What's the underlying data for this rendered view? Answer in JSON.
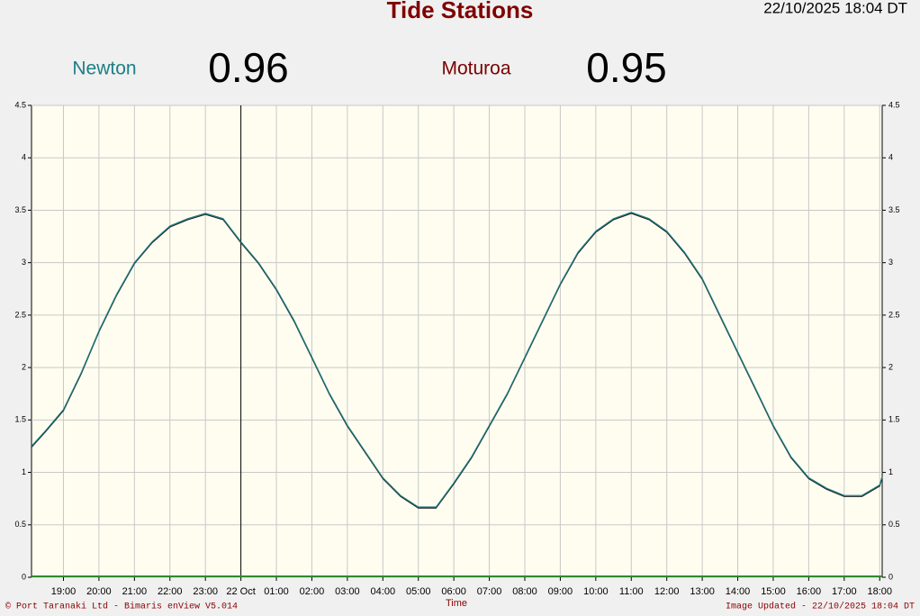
{
  "chart_data": {
    "type": "line",
    "title": "Tide Stations",
    "timestamp": "22/10/2025 18:04 DT",
    "x_label": "Time",
    "footer_left": "© Port Taranaki Ltd - Bimaris enView V5.014",
    "footer_right": "Image Updated - 22/10/2025 18:04 DT",
    "x": [
      18.1,
      18.5,
      19,
      19.5,
      20,
      20.5,
      21,
      21.5,
      22,
      22.5,
      23,
      23.5,
      24,
      24.5,
      25,
      25.5,
      26,
      26.5,
      27,
      27.5,
      28,
      28.5,
      29,
      29.5,
      30,
      30.5,
      31,
      31.5,
      32,
      32.5,
      33,
      33.5,
      34,
      34.5,
      35,
      35.5,
      36,
      36.5,
      37,
      37.5,
      38,
      38.5,
      39,
      39.5,
      40,
      40.5,
      41,
      41.5,
      42,
      42.07
    ],
    "series": [
      {
        "name": "Newton",
        "color": "#1b7f86",
        "latest": 0.96,
        "values": [
          1.25,
          1.4,
          1.6,
          1.95,
          2.35,
          2.7,
          3.0,
          3.2,
          3.35,
          3.42,
          3.47,
          3.42,
          3.2,
          3.0,
          2.75,
          2.45,
          2.1,
          1.75,
          1.45,
          1.2,
          0.95,
          0.78,
          0.67,
          0.67,
          0.9,
          1.15,
          1.45,
          1.75,
          2.1,
          2.45,
          2.8,
          3.1,
          3.3,
          3.42,
          3.48,
          3.42,
          3.3,
          3.1,
          2.85,
          2.5,
          2.15,
          1.8,
          1.45,
          1.15,
          0.95,
          0.85,
          0.78,
          0.78,
          0.88,
          0.96
        ]
      },
      {
        "name": "Moturoa",
        "color": "#7a0000",
        "line_color": "#222222",
        "latest": 0.95,
        "values": [
          1.24,
          1.39,
          1.59,
          1.94,
          2.34,
          2.69,
          2.99,
          3.19,
          3.34,
          3.41,
          3.46,
          3.41,
          3.19,
          2.99,
          2.74,
          2.44,
          2.09,
          1.74,
          1.44,
          1.19,
          0.94,
          0.77,
          0.66,
          0.66,
          0.89,
          1.14,
          1.44,
          1.74,
          2.09,
          2.44,
          2.79,
          3.09,
          3.29,
          3.41,
          3.47,
          3.41,
          3.29,
          3.09,
          2.84,
          2.49,
          2.14,
          1.79,
          1.44,
          1.14,
          0.94,
          0.84,
          0.77,
          0.77,
          0.87,
          0.95
        ]
      }
    ],
    "xlim": [
      18.1,
      42.07
    ],
    "xticks": [
      {
        "value": 19,
        "label": "19:00"
      },
      {
        "value": 20,
        "label": "20:00"
      },
      {
        "value": 21,
        "label": "21:00"
      },
      {
        "value": 22,
        "label": "22:00"
      },
      {
        "value": 23,
        "label": "23:00"
      },
      {
        "value": 24,
        "label": "22 Oct"
      },
      {
        "value": 25,
        "label": "01:00"
      },
      {
        "value": 26,
        "label": "02:00"
      },
      {
        "value": 27,
        "label": "03:00"
      },
      {
        "value": 28,
        "label": "04:00"
      },
      {
        "value": 29,
        "label": "05:00"
      },
      {
        "value": 30,
        "label": "06:00"
      },
      {
        "value": 31,
        "label": "07:00"
      },
      {
        "value": 32,
        "label": "08:00"
      },
      {
        "value": 33,
        "label": "09:00"
      },
      {
        "value": 34,
        "label": "10:00"
      },
      {
        "value": 35,
        "label": "11:00"
      },
      {
        "value": 36,
        "label": "12:00"
      },
      {
        "value": 37,
        "label": "13:00"
      },
      {
        "value": 38,
        "label": "14:00"
      },
      {
        "value": 39,
        "label": "15:00"
      },
      {
        "value": 40,
        "label": "16:00"
      },
      {
        "value": 41,
        "label": "17:00"
      },
      {
        "value": 42,
        "label": "18:00"
      }
    ],
    "ylim": [
      0,
      4.5
    ],
    "yticks": [
      0,
      0.5,
      1,
      1.5,
      2,
      2.5,
      3,
      3.5,
      4,
      4.5
    ],
    "grid": true,
    "day_line": 24
  }
}
